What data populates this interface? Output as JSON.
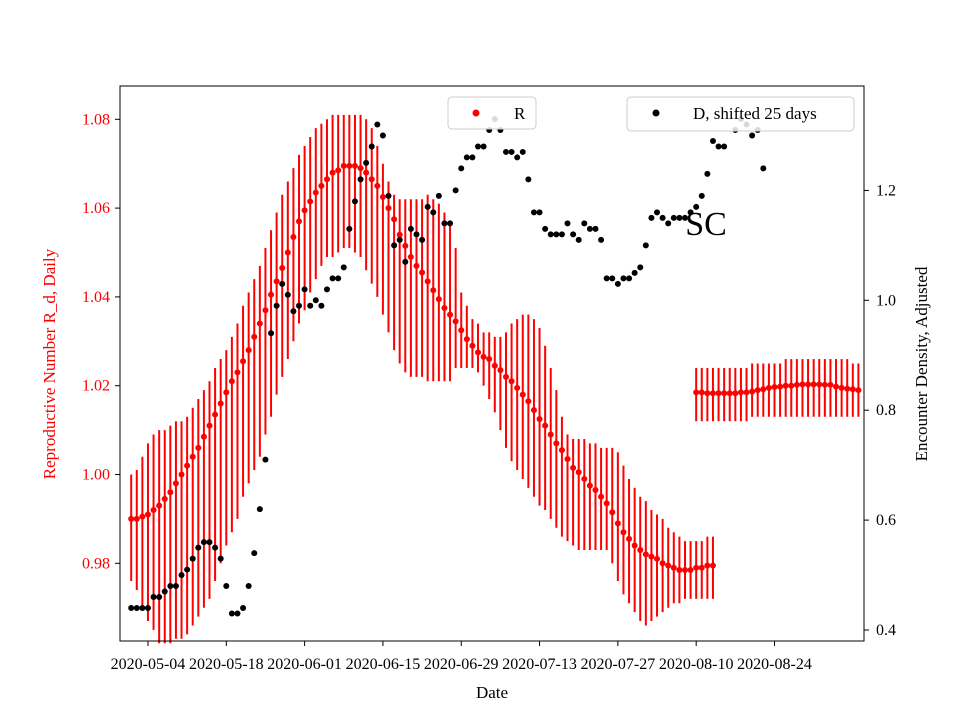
{
  "chart_data": {
    "type": "scatter",
    "title": "",
    "annotation": "SC",
    "xlabel": "Date",
    "y_left_label": "Reproductive Number R_d, Daily",
    "y_right_label": "Encounter Density, Adjusted",
    "x_range": [
      "2020-04-29",
      "2020-09-09"
    ],
    "x_ticks": [
      "2020-05-04",
      "2020-05-18",
      "2020-06-01",
      "2020-06-15",
      "2020-06-29",
      "2020-07-13",
      "2020-07-27",
      "2020-08-10",
      "2020-08-24"
    ],
    "y_left_range": [
      0.9625,
      1.0875
    ],
    "y_left_ticks": [
      "0.98",
      "1.00",
      "1.02",
      "1.04",
      "1.06",
      "1.08"
    ],
    "y_right_range": [
      0.38,
      1.39
    ],
    "y_right_ticks": [
      "0.4",
      "0.6",
      "0.8",
      "1.0",
      "1.2"
    ],
    "colors": {
      "r_series": "#ff0000",
      "d_series": "#000000",
      "left_axis_text": "#ff0000",
      "right_axis_text": "#000000"
    },
    "legends": [
      {
        "label": "R",
        "color": "#ff0000",
        "placement": "top-center"
      },
      {
        "label": "D, shifted 25 days",
        "color": "#000000",
        "placement": "top-right"
      }
    ],
    "series": [
      {
        "name": "R",
        "axis": "left",
        "color": "#ff0000",
        "style": "points with vertical error bars",
        "segments": [
          {
            "start_date": "2020-05-01",
            "values": [
              0.99,
              0.99,
              0.9905,
              0.991,
              0.992,
              0.993,
              0.9945,
              0.996,
              0.998,
              1.0,
              1.002,
              1.004,
              1.006,
              1.0085,
              1.011,
              1.0135,
              1.016,
              1.0185,
              1.021,
              1.023,
              1.0255,
              1.028,
              1.031,
              1.034,
              1.037,
              1.0405,
              1.0435,
              1.0465,
              1.05,
              1.0535,
              1.057,
              1.0595,
              1.0615,
              1.0635,
              1.065,
              1.0665,
              1.068,
              1.0685,
              1.0695,
              1.0695,
              1.0695,
              1.069,
              1.068,
              1.0665,
              1.065,
              1.0625,
              1.06,
              1.0575,
              1.054,
              1.0515,
              1.049,
              1.047,
              1.0455,
              1.0435,
              1.0415,
              1.0395,
              1.0375,
              1.036,
              1.0345,
              1.0325,
              1.0305,
              1.029,
              1.0275,
              1.0265,
              1.026,
              1.0245,
              1.0235,
              1.022,
              1.021,
              1.0195,
              1.018,
              1.0165,
              1.0145,
              1.0125,
              1.011,
              1.009,
              1.007,
              1.0055,
              1.0035,
              1.0015,
              1.0005,
              0.999,
              0.9975,
              0.9965,
              0.995,
              0.9935,
              0.9915,
              0.989,
              0.987,
              0.9855,
              0.984,
              0.983,
              0.982,
              0.9815,
              0.981,
              0.98,
              0.9795,
              0.979,
              0.9785,
              0.9785,
              0.9785,
              0.979,
              0.979,
              0.9795,
              0.9795
            ],
            "lower": [
              0.976,
              0.974,
              0.97,
              0.967,
              0.965,
              0.962,
              0.962,
              0.962,
              0.963,
              0.963,
              0.964,
              0.966,
              0.968,
              0.97,
              0.972,
              0.976,
              0.98,
              0.984,
              0.987,
              0.99,
              0.995,
              0.998,
              1.001,
              1.004,
              1.009,
              1.013,
              1.018,
              1.022,
              1.026,
              1.03,
              1.034,
              1.037,
              1.041,
              1.044,
              1.047,
              1.049,
              1.049,
              1.05,
              1.051,
              1.051,
              1.05,
              1.049,
              1.046,
              1.043,
              1.04,
              1.036,
              1.032,
              1.028,
              1.025,
              1.023,
              1.022,
              1.022,
              1.022,
              1.021,
              1.021,
              1.021,
              1.021,
              1.021,
              1.024,
              1.024,
              1.024,
              1.024,
              1.023,
              1.02,
              1.017,
              1.014,
              1.01,
              1.006,
              1.003,
              1.001,
              0.999,
              0.997,
              0.995,
              0.993,
              0.992,
              0.99,
              0.988,
              0.986,
              0.985,
              0.984,
              0.983,
              0.983,
              0.983,
              0.983,
              0.983,
              0.983,
              0.98,
              0.976,
              0.973,
              0.971,
              0.969,
              0.967,
              0.966,
              0.967,
              0.968,
              0.969,
              0.97,
              0.971,
              0.971,
              0.972,
              0.972,
              0.972,
              0.972,
              0.972,
              0.972
            ],
            "upper": [
              1.0,
              1.001,
              1.004,
              1.007,
              1.009,
              1.01,
              1.01,
              1.011,
              1.012,
              1.012,
              1.013,
              1.015,
              1.017,
              1.019,
              1.021,
              1.024,
              1.026,
              1.028,
              1.031,
              1.034,
              1.038,
              1.041,
              1.044,
              1.047,
              1.051,
              1.055,
              1.059,
              1.063,
              1.066,
              1.069,
              1.072,
              1.074,
              1.076,
              1.078,
              1.079,
              1.08,
              1.081,
              1.081,
              1.081,
              1.081,
              1.081,
              1.081,
              1.08,
              1.078,
              1.074,
              1.07,
              1.066,
              1.063,
              1.062,
              1.062,
              1.062,
              1.062,
              1.062,
              1.063,
              1.062,
              1.061,
              1.059,
              1.057,
              1.051,
              1.041,
              1.038,
              1.035,
              1.034,
              1.032,
              1.032,
              1.031,
              1.031,
              1.032,
              1.034,
              1.035,
              1.036,
              1.036,
              1.035,
              1.033,
              1.029,
              1.024,
              1.019,
              1.013,
              1.009,
              1.008,
              1.008,
              1.008,
              1.007,
              1.007,
              1.006,
              1.006,
              1.006,
              1.005,
              1.002,
              0.999,
              0.997,
              0.995,
              0.994,
              0.992,
              0.991,
              0.99,
              0.988,
              0.987,
              0.986,
              0.985,
              0.985,
              0.985,
              0.985,
              0.986,
              0.986
            ]
          },
          {
            "start_date": "2020-08-10",
            "values": [
              1.0185,
              1.0185,
              1.0183,
              1.0183,
              1.0183,
              1.0183,
              1.0183,
              1.0183,
              1.0185,
              1.0185,
              1.0187,
              1.019,
              1.0192,
              1.0195,
              1.0197,
              1.0198,
              1.02,
              1.02,
              1.0202,
              1.0203,
              1.0203,
              1.0203,
              1.0203,
              1.0202,
              1.0202,
              1.0198,
              1.0195,
              1.0193,
              1.0192,
              1.019
            ],
            "lower": [
              1.012,
              1.012,
              1.012,
              1.012,
              1.012,
              1.012,
              1.012,
              1.012,
              1.012,
              1.012,
              1.013,
              1.013,
              1.013,
              1.013,
              1.013,
              1.013,
              1.013,
              1.013,
              1.013,
              1.013,
              1.013,
              1.013,
              1.013,
              1.013,
              1.013,
              1.013,
              1.013,
              1.013,
              1.013,
              1.013
            ],
            "upper": [
              1.024,
              1.024,
              1.024,
              1.024,
              1.024,
              1.024,
              1.024,
              1.024,
              1.024,
              1.024,
              1.025,
              1.025,
              1.025,
              1.025,
              1.025,
              1.025,
              1.026,
              1.026,
              1.026,
              1.026,
              1.026,
              1.026,
              1.026,
              1.026,
              1.026,
              1.026,
              1.026,
              1.026,
              1.025,
              1.025
            ]
          }
        ]
      },
      {
        "name": "D, shifted 25 days",
        "axis": "right",
        "color": "#000000",
        "style": "points",
        "start_date": "2020-05-01",
        "values": [
          0.44,
          0.44,
          0.44,
          0.44,
          0.46,
          0.46,
          0.47,
          0.48,
          0.48,
          0.5,
          0.51,
          0.53,
          0.55,
          0.56,
          0.56,
          0.55,
          0.53,
          0.48,
          0.43,
          0.43,
          0.44,
          0.48,
          0.54,
          0.62,
          0.71,
          0.94,
          0.99,
          1.03,
          1.01,
          0.98,
          0.99,
          1.02,
          0.99,
          1.0,
          0.99,
          1.02,
          1.04,
          1.04,
          1.06,
          1.13,
          1.18,
          1.22,
          1.25,
          1.28,
          1.32,
          1.3,
          1.19,
          1.1,
          1.11,
          1.07,
          1.13,
          1.12,
          1.11,
          1.17,
          1.16,
          1.19,
          1.14,
          1.14,
          1.2,
          1.24,
          1.26,
          1.26,
          1.28,
          1.28,
          1.31,
          1.33,
          1.31,
          1.27,
          1.27,
          1.26,
          1.27,
          1.22,
          1.16,
          1.16,
          1.13,
          1.12,
          1.12,
          1.12,
          1.14,
          1.12,
          1.11,
          1.14,
          1.13,
          1.13,
          1.11,
          1.04,
          1.04,
          1.03,
          1.04,
          1.04,
          1.05,
          1.06,
          1.1,
          1.15,
          1.16,
          1.15,
          1.14,
          1.15,
          1.15,
          1.15,
          1.16,
          1.17,
          1.19,
          1.23,
          1.29,
          1.28,
          1.28,
          null,
          1.31,
          1.33,
          1.32,
          1.3,
          1.31,
          1.24
        ]
      }
    ]
  }
}
